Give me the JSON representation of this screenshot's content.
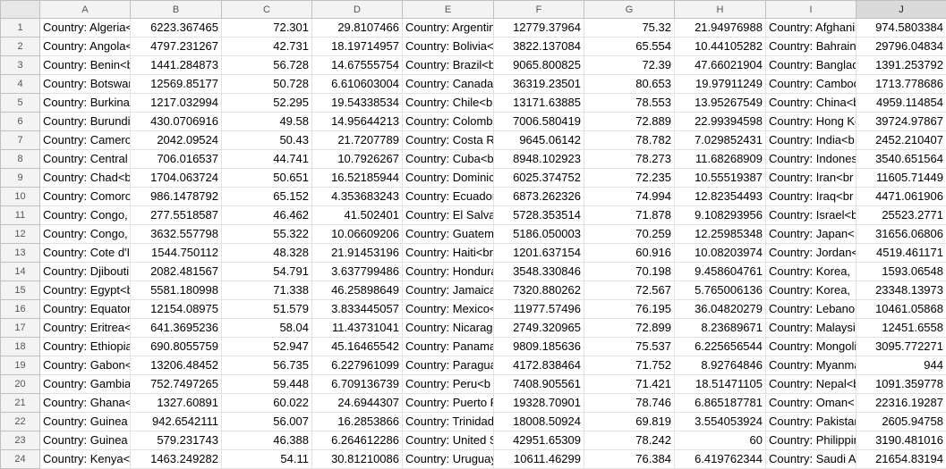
{
  "columns": [
    "A",
    "B",
    "C",
    "D",
    "E",
    "F",
    "G",
    "H",
    "I",
    "J"
  ],
  "selected_column": "J",
  "rows": [
    {
      "n": "1",
      "cells": [
        "Country: Algeria<",
        "6223.367465",
        "72.301",
        "29.8107466",
        "Country: Argentina",
        "12779.37964",
        "75.32",
        "21.94976988",
        "Country: Afghanistan",
        "974.5803384"
      ]
    },
    {
      "n": "2",
      "cells": [
        "Country: Angola<",
        "4797.231267",
        "42.731",
        "18.19714957",
        "Country: Bolivia<",
        "3822.137084",
        "65.554",
        "10.44105282",
        "Country: Bahrain",
        "29796.04834"
      ]
    },
    {
      "n": "3",
      "cells": [
        "Country: Benin<b",
        "1441.284873",
        "56.728",
        "14.67555754",
        "Country: Brazil<b",
        "9065.800825",
        "72.39",
        "47.66021904",
        "Country: Bangladesh",
        "1391.253792"
      ]
    },
    {
      "n": "4",
      "cells": [
        "Country: Botswana",
        "12569.85177",
        "50.728",
        "6.610603004",
        "Country: Canada",
        "36319.23501",
        "80.653",
        "19.97911249",
        "Country: Cambodia",
        "1713.778686"
      ]
    },
    {
      "n": "5",
      "cells": [
        "Country: Burkina",
        "1217.032994",
        "52.295",
        "19.54338534",
        "Country: Chile<b",
        "13171.63885",
        "78.553",
        "13.95267549",
        "Country: China<b",
        "4959.114854"
      ]
    },
    {
      "n": "6",
      "cells": [
        "Country: Burundi",
        "430.0706916",
        "49.58",
        "14.95644213",
        "Country: Colombia",
        "7006.580419",
        "72.889",
        "22.99394598",
        "Country: Hong Kong",
        "39724.97867"
      ]
    },
    {
      "n": "7",
      "cells": [
        "Country: Cameroon",
        "2042.09524",
        "50.43",
        "21.7207789",
        "Country: Costa Rica",
        "9645.06142",
        "78.782",
        "7.029852431",
        "Country: India<b",
        "2452.210407"
      ]
    },
    {
      "n": "8",
      "cells": [
        "Country: Central",
        "706.016537",
        "44.741",
        "10.7926267",
        "Country: Cuba<b",
        "8948.102923",
        "78.273",
        "11.68268909",
        "Country: Indonesia",
        "3540.651564"
      ]
    },
    {
      "n": "9",
      "cells": [
        "Country: Chad<b",
        "1704.063724",
        "50.651",
        "16.52185944",
        "Country: Dominican",
        "6025.374752",
        "72.235",
        "10.55519387",
        "Country: Iran<br",
        "11605.71449"
      ]
    },
    {
      "n": "10",
      "cells": [
        "Country: Comoros",
        "986.1478792",
        "65.152",
        "4.353683243",
        "Country: Ecuador",
        "6873.262326",
        "74.994",
        "12.82354493",
        "Country: Iraq<br",
        "4471.061906"
      ]
    },
    {
      "n": "11",
      "cells": [
        "Country: Congo,",
        "277.5518587",
        "46.462",
        "41.502401",
        "Country: El Salvador",
        "5728.353514",
        "71.878",
        "9.108293956",
        "Country: Israel<b",
        "25523.2771"
      ]
    },
    {
      "n": "12",
      "cells": [
        "Country: Congo,",
        "3632.557798",
        "55.322",
        "10.06609206",
        "Country: Guatemala",
        "5186.050003",
        "70.259",
        "12.25985348",
        "Country: Japan<",
        "31656.06806"
      ]
    },
    {
      "n": "13",
      "cells": [
        "Country: Cote d'Ivoire",
        "1544.750112",
        "48.328",
        "21.91453196",
        "Country: Haiti<br",
        "1201.637154",
        "60.916",
        "10.08203974",
        "Country: Jordan<",
        "4519.461171"
      ]
    },
    {
      "n": "14",
      "cells": [
        "Country: Djibouti",
        "2082.481567",
        "54.791",
        "3.637799486",
        "Country: Honduras",
        "3548.330846",
        "70.198",
        "9.458604761",
        "Country: Korea,",
        "1593.06548"
      ]
    },
    {
      "n": "15",
      "cells": [
        "Country: Egypt<b",
        "5581.180998",
        "71.338",
        "46.25898649",
        "Country: Jamaica",
        "7320.880262",
        "72.567",
        "5.765006136",
        "Country: Korea,",
        "23348.13973"
      ]
    },
    {
      "n": "16",
      "cells": [
        "Country: Equatorial",
        "12154.08975",
        "51.579",
        "3.833445057",
        "Country: Mexico<",
        "11977.57496",
        "76.195",
        "36.04820279",
        "Country: Lebanon",
        "10461.05868"
      ]
    },
    {
      "n": "17",
      "cells": [
        "Country: Eritrea<",
        "641.3695236",
        "58.04",
        "11.43731041",
        "Country: Nicaragua",
        "2749.320965",
        "72.899",
        "8.23689671",
        "Country: Malaysia",
        "12451.6558"
      ]
    },
    {
      "n": "18",
      "cells": [
        "Country: Ethiopia",
        "690.8055759",
        "52.947",
        "45.16465542",
        "Country: Panama",
        "9809.185636",
        "75.537",
        "6.225656544",
        "Country: Mongolia",
        "3095.772271"
      ]
    },
    {
      "n": "19",
      "cells": [
        "Country: Gabon<",
        "13206.48452",
        "56.735",
        "6.227961099",
        "Country: Paraguay",
        "4172.838464",
        "71.752",
        "8.92764846",
        "Country: Myanmar",
        "944"
      ]
    },
    {
      "n": "20",
      "cells": [
        "Country: Gambia",
        "752.7497265",
        "59.448",
        "6.709136739",
        "Country: Peru<b",
        "7408.905561",
        "71.421",
        "18.51471105",
        "Country: Nepal<b",
        "1091.359778"
      ]
    },
    {
      "n": "21",
      "cells": [
        "Country: Ghana<",
        "1327.60891",
        "60.022",
        "24.6944307",
        "Country: Puerto Rico",
        "19328.70901",
        "78.746",
        "6.865187781",
        "Country: Oman<",
        "22316.19287"
      ]
    },
    {
      "n": "22",
      "cells": [
        "Country: Guinea",
        "942.6542111",
        "56.007",
        "16.2853866",
        "Country: Trinidad",
        "18008.50924",
        "69.819",
        "3.554053924",
        "Country: Pakistan",
        "2605.94758"
      ]
    },
    {
      "n": "23",
      "cells": [
        "Country: Guinea",
        "579.231743",
        "46.388",
        "6.264612286",
        "Country: United States",
        "42951.65309",
        "78.242",
        "60",
        "Country: Philippines",
        "3190.481016"
      ]
    },
    {
      "n": "24",
      "cells": [
        "Country: Kenya<",
        "1463.249282",
        "54.11",
        "30.81210086",
        "Country: Uruguay",
        "10611.46299",
        "76.384",
        "6.419762344",
        "Country: Saudi Arabia",
        "21654.83194"
      ]
    }
  ]
}
